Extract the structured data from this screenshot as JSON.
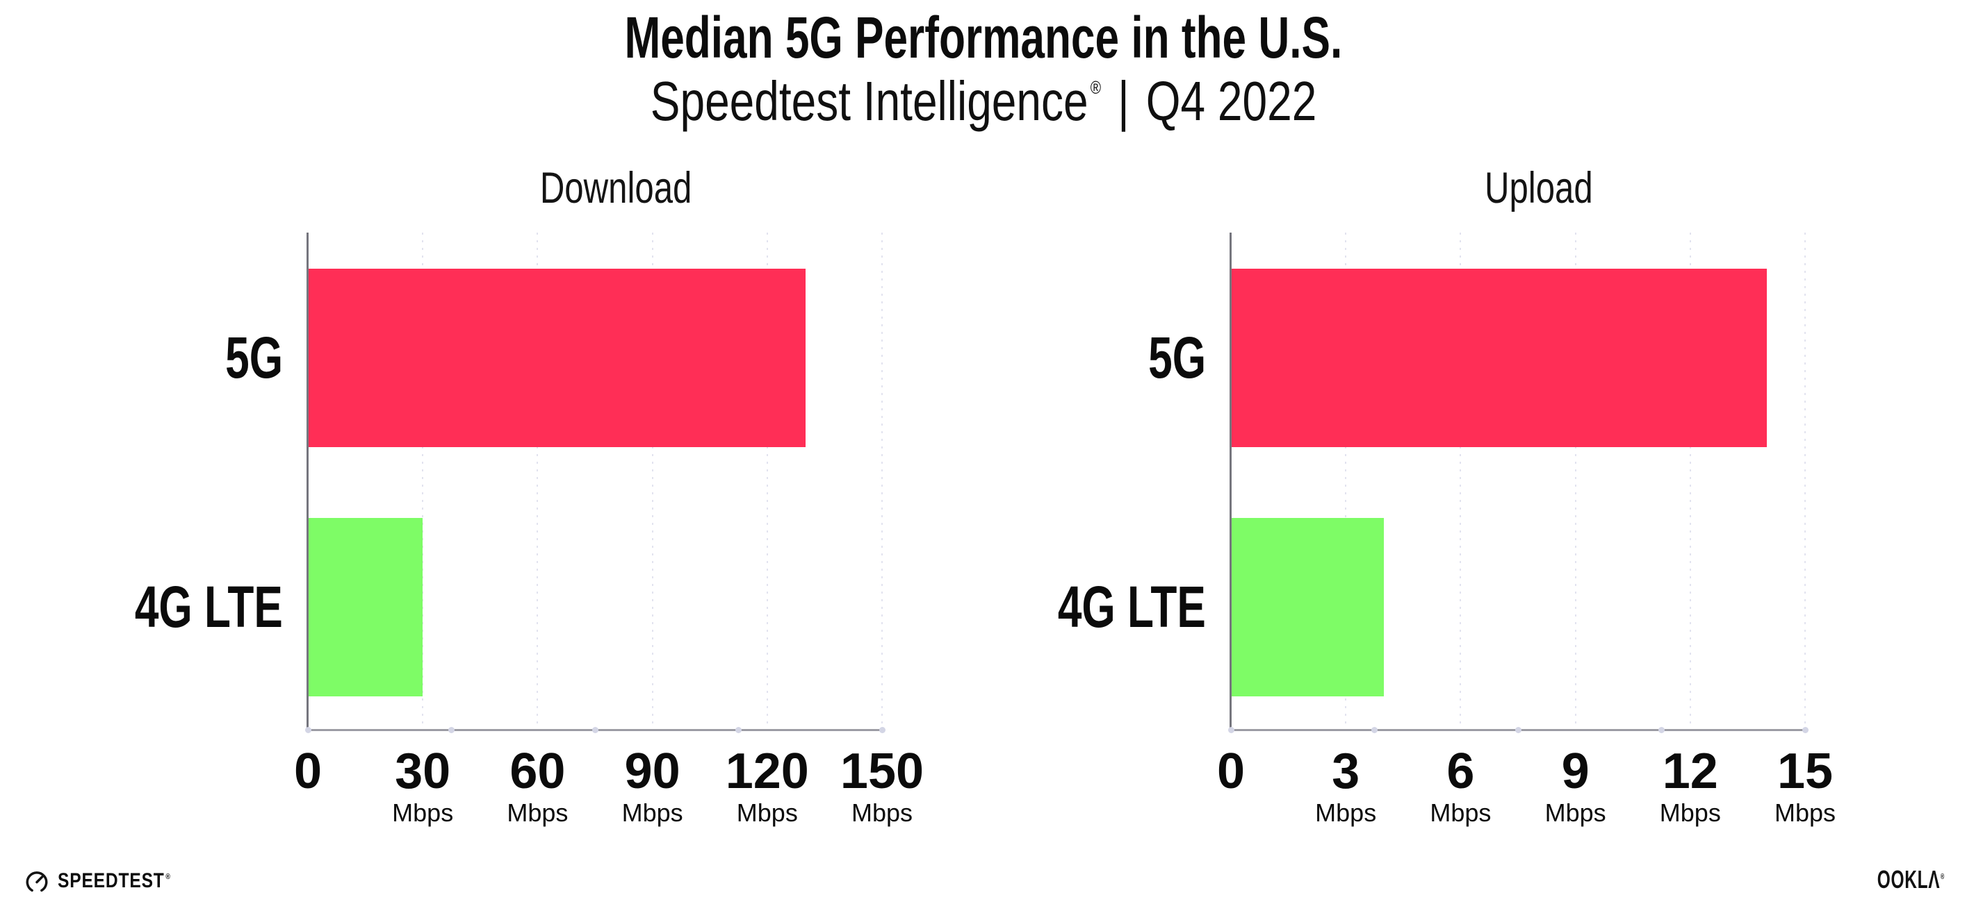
{
  "header": {
    "title": "Median 5G Performance in the U.S.",
    "subtitle_brand": "Speedtest Intelligence",
    "subtitle_registered": "®",
    "subtitle_separator": "|",
    "subtitle_period": "Q4 2022"
  },
  "chart_data": [
    {
      "type": "bar",
      "orientation": "horizontal",
      "title": "Download",
      "categories": [
        "5G",
        "4G LTE"
      ],
      "values": [
        130,
        30
      ],
      "unit": "Mbps",
      "xlim": [
        0,
        150
      ],
      "xticks": [
        0,
        30,
        60,
        90,
        120,
        150
      ],
      "bar_colors": [
        "#ff2e56",
        "#7efc66"
      ],
      "grid": "dotted-vertical-at-ticks",
      "legend": "none"
    },
    {
      "type": "bar",
      "orientation": "horizontal",
      "title": "Upload",
      "categories": [
        "5G",
        "4G LTE"
      ],
      "values": [
        14,
        4
      ],
      "unit": "Mbps",
      "xlim": [
        0,
        15
      ],
      "xticks": [
        0,
        3,
        6,
        9,
        12,
        15
      ],
      "bar_colors": [
        "#ff2e56",
        "#7efc66"
      ],
      "grid": "dotted-vertical-at-ticks",
      "legend": "none"
    }
  ],
  "footer": {
    "speedtest_wordmark": "SPEEDTEST",
    "speedtest_mark": "®",
    "ookla_wordmark": "OOKLΛ",
    "ookla_mark": "®"
  },
  "colors": {
    "bar_5g": "#ff2e56",
    "bar_4g_lte": "#7efc66",
    "axis_y": "#76767e",
    "axis_x": "#9c9ca4",
    "gridline": "#e2e3ef",
    "axis_dot": "#d3d5e5",
    "text": "#0c0c0c",
    "background": "#ffffff"
  }
}
